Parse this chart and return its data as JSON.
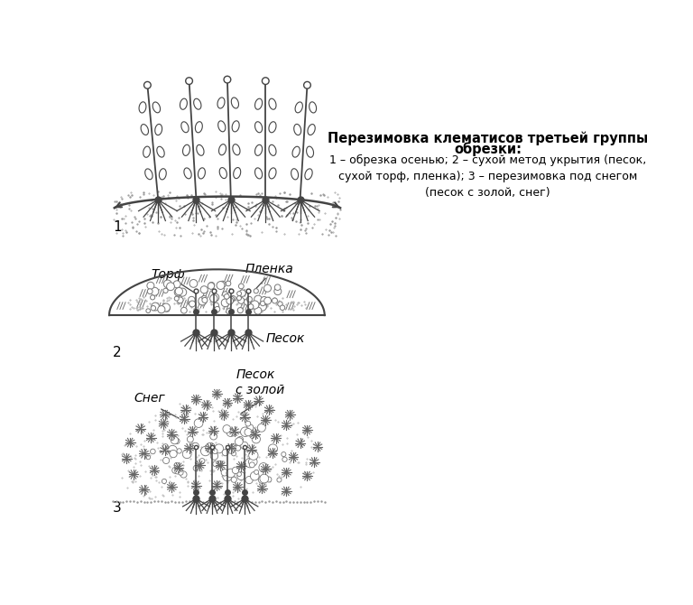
{
  "title_line1": "Перезимовка клематисов третьей группы",
  "title_line2": "обрезки:",
  "description": "1 – обрезка осенью; 2 – сухой метод укрытия (песок,\nсухой торф, пленка); 3 – перезимовка под снегом\n(песок с золой, снег)",
  "label_torf": "Торф",
  "label_plenka": "Пленка",
  "label_sneg": "Снег",
  "label_pesok_zoloy": "Песок\nс золой",
  "label_pesok": "Песок",
  "num1": "1",
  "num2": "2",
  "num3": "3",
  "bg_color": "#ffffff",
  "dark_color": "#444444",
  "mid_color": "#777777",
  "light_color": "#aaaaaa"
}
